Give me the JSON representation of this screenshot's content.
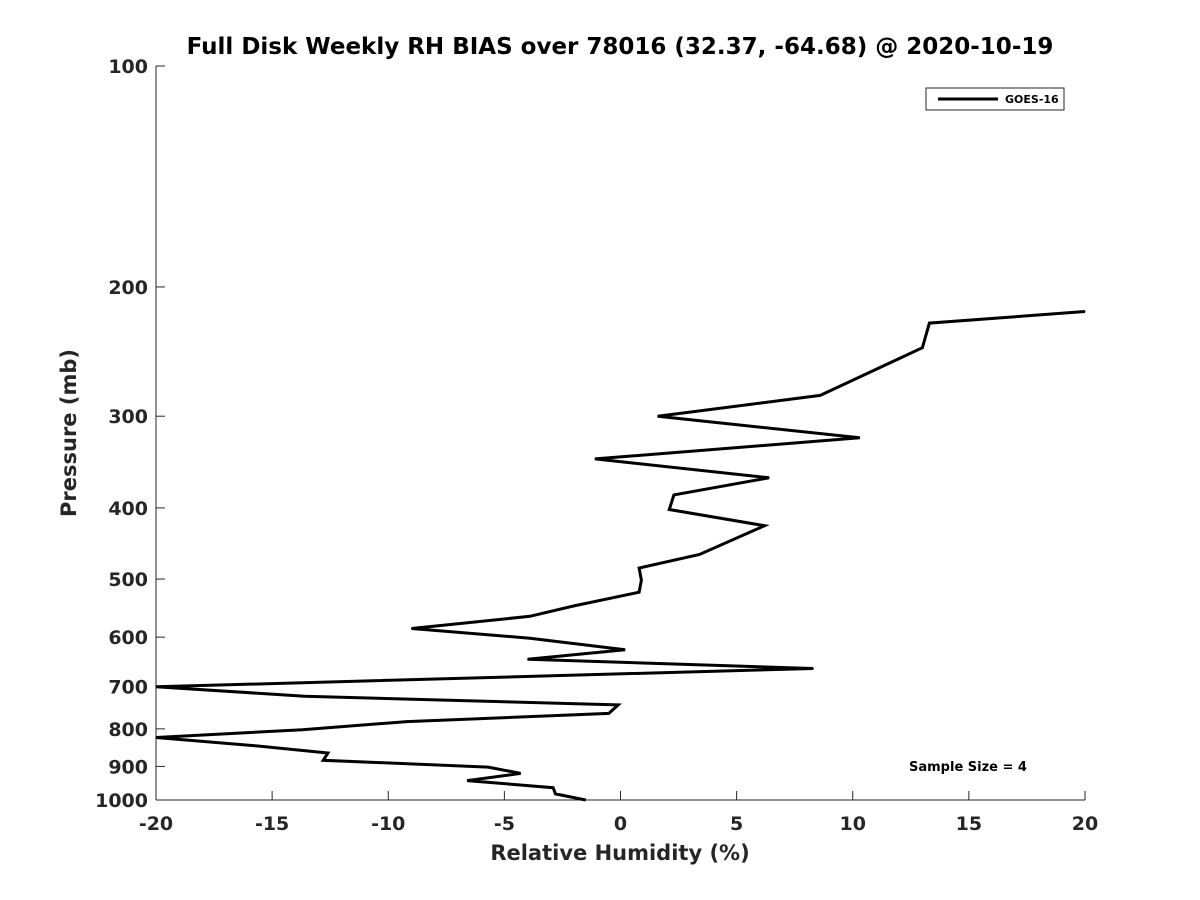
{
  "chart_data": {
    "type": "line",
    "title": "Full Disk Weekly RH BIAS over 78016 (32.37, -64.68) @ 2020-10-19",
    "xlabel": "Relative Humidity (%)",
    "ylabel": "Pressure (mb)",
    "xlim": [
      -20,
      20
    ],
    "ylim": [
      100,
      1000
    ],
    "y_scale": "log",
    "y_reversed": true,
    "x_ticks": [
      "-20",
      "-15",
      "-10",
      "-5",
      "0",
      "5",
      "10",
      "15",
      "20"
    ],
    "y_ticks": [
      "100",
      "200",
      "300",
      "400",
      "500",
      "600",
      "700",
      "800",
      "900",
      "1000"
    ],
    "legend_position": "top-right",
    "annotation": "Sample Size = 4",
    "series": [
      {
        "name": "GOES-16",
        "color": "#000000",
        "points": [
          {
            "x": 20.0,
            "p": 216
          },
          {
            "x": 13.3,
            "p": 224
          },
          {
            "x": 13.0,
            "p": 242
          },
          {
            "x": 8.6,
            "p": 281
          },
          {
            "x": 1.6,
            "p": 300
          },
          {
            "x": 10.3,
            "p": 321
          },
          {
            "x": -1.1,
            "p": 343
          },
          {
            "x": 6.4,
            "p": 364
          },
          {
            "x": 2.3,
            "p": 384
          },
          {
            "x": 2.1,
            "p": 402
          },
          {
            "x": 6.2,
            "p": 423
          },
          {
            "x": 3.4,
            "p": 463
          },
          {
            "x": 0.8,
            "p": 483
          },
          {
            "x": 0.9,
            "p": 502
          },
          {
            "x": 0.8,
            "p": 521
          },
          {
            "x": -2.0,
            "p": 544
          },
          {
            "x": -3.9,
            "p": 562
          },
          {
            "x": -9.0,
            "p": 584
          },
          {
            "x": -3.9,
            "p": 602
          },
          {
            "x": 0.2,
            "p": 624
          },
          {
            "x": -4.0,
            "p": 643
          },
          {
            "x": 8.3,
            "p": 662
          },
          {
            "x": -20.0,
            "p": 701
          },
          {
            "x": -13.6,
            "p": 722
          },
          {
            "x": -0.1,
            "p": 742
          },
          {
            "x": -0.5,
            "p": 762
          },
          {
            "x": -9.2,
            "p": 782
          },
          {
            "x": -13.7,
            "p": 802
          },
          {
            "x": -20.0,
            "p": 822
          },
          {
            "x": -15.8,
            "p": 843
          },
          {
            "x": -12.6,
            "p": 863
          },
          {
            "x": -12.8,
            "p": 883
          },
          {
            "x": -5.7,
            "p": 902
          },
          {
            "x": -4.3,
            "p": 920
          },
          {
            "x": -6.6,
            "p": 941
          },
          {
            "x": -2.9,
            "p": 962
          },
          {
            "x": -2.8,
            "p": 981
          },
          {
            "x": -1.5,
            "p": 1000
          }
        ]
      }
    ]
  }
}
